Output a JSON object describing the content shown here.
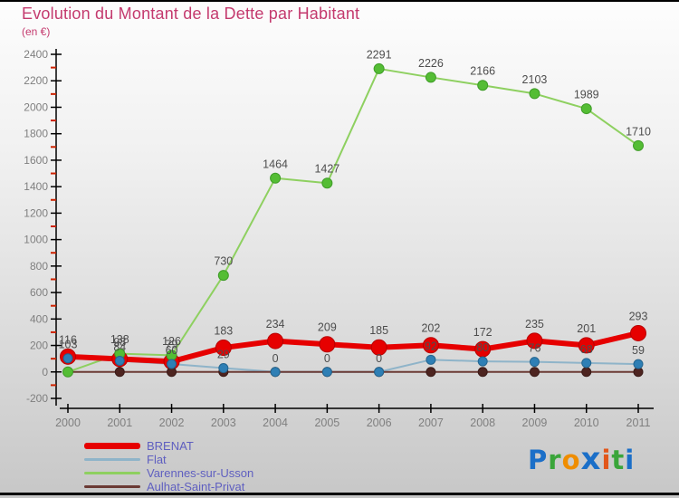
{
  "chart_data": {
    "type": "line",
    "title": "Evolution du Montant de la Dette par Habitant",
    "unit_label": "(en €)",
    "x": [
      2000,
      2001,
      2002,
      2003,
      2004,
      2005,
      2006,
      2007,
      2008,
      2009,
      2010,
      2011
    ],
    "ylim": [
      -200,
      2400
    ],
    "ytick_step": 200,
    "grid": false,
    "legend_position": "bottom-left",
    "series": [
      {
        "name": "BRENAT",
        "line_color": "#e60000",
        "marker_color": "#e60000",
        "marker_edge": "#b80000",
        "line_width": 6,
        "marker_radius": 8.5,
        "values": [
          116,
          98,
          79,
          183,
          234,
          209,
          185,
          202,
          172,
          235,
          201,
          293
        ],
        "labels": [
          "116",
          "98",
          "79",
          "183",
          "234",
          "209",
          "185",
          "202",
          "172",
          "235",
          "201",
          "293"
        ]
      },
      {
        "name": "Flat",
        "line_color": "#8fb4c9",
        "marker_color": "#2e7fb5",
        "marker_edge": "#24658f",
        "line_width": 2,
        "marker_radius": 5,
        "values": [
          103,
          84,
          60,
          29,
          0,
          0,
          0,
          92,
          80,
          76,
          68,
          59
        ],
        "labels": [
          "103",
          "84",
          "60",
          "29",
          "0",
          "0",
          "0",
          "92",
          "80",
          "76",
          "68",
          "59"
        ]
      },
      {
        "name": "Varennes-sur-Usson",
        "line_color": "#8ed060",
        "marker_color": "#54bd34",
        "marker_edge": "#3f9c28",
        "line_width": 2,
        "marker_radius": 5.5,
        "values": [
          0,
          138,
          126,
          730,
          1464,
          1427,
          2291,
          2226,
          2166,
          2103,
          1989,
          1710
        ],
        "labels": [
          "",
          "138",
          "126",
          "730",
          "1464",
          "1427",
          "2291",
          "2226",
          "2166",
          "2103",
          "1989",
          "1710"
        ]
      },
      {
        "name": "Aulhat-Saint-Privat",
        "line_color": "#6b3a34",
        "marker_color": "#4d2420",
        "marker_edge": "#3a1a17",
        "line_width": 2,
        "marker_radius": 5,
        "values": [
          0,
          0,
          0,
          0,
          0,
          0,
          0,
          0,
          0,
          0,
          0,
          0
        ],
        "labels": [
          "",
          "",
          "",
          "",
          "",
          "",
          "",
          "",
          "",
          "",
          "",
          ""
        ]
      }
    ]
  },
  "colors": {
    "title": "#c43a6e",
    "axis": "#000000",
    "tick_labels": "#7f7f7f",
    "minor_tick": "#cc2200",
    "point_labels": "#4d4d4d",
    "legend_text": "#5f5fc0"
  },
  "logo": {
    "text": "Proxiti",
    "letters": [
      {
        "ch": "P",
        "color": "#1b6fc8"
      },
      {
        "ch": "r",
        "color": "#3aa53a"
      },
      {
        "ch": "o",
        "color": "#ef8d00"
      },
      {
        "ch": "x",
        "color": "#1b6fc8",
        "big": true
      },
      {
        "ch": "i",
        "color": "#e2571b"
      },
      {
        "ch": "t",
        "color": "#3aa53a"
      },
      {
        "ch": "i",
        "color": "#1b6fc8"
      }
    ]
  }
}
